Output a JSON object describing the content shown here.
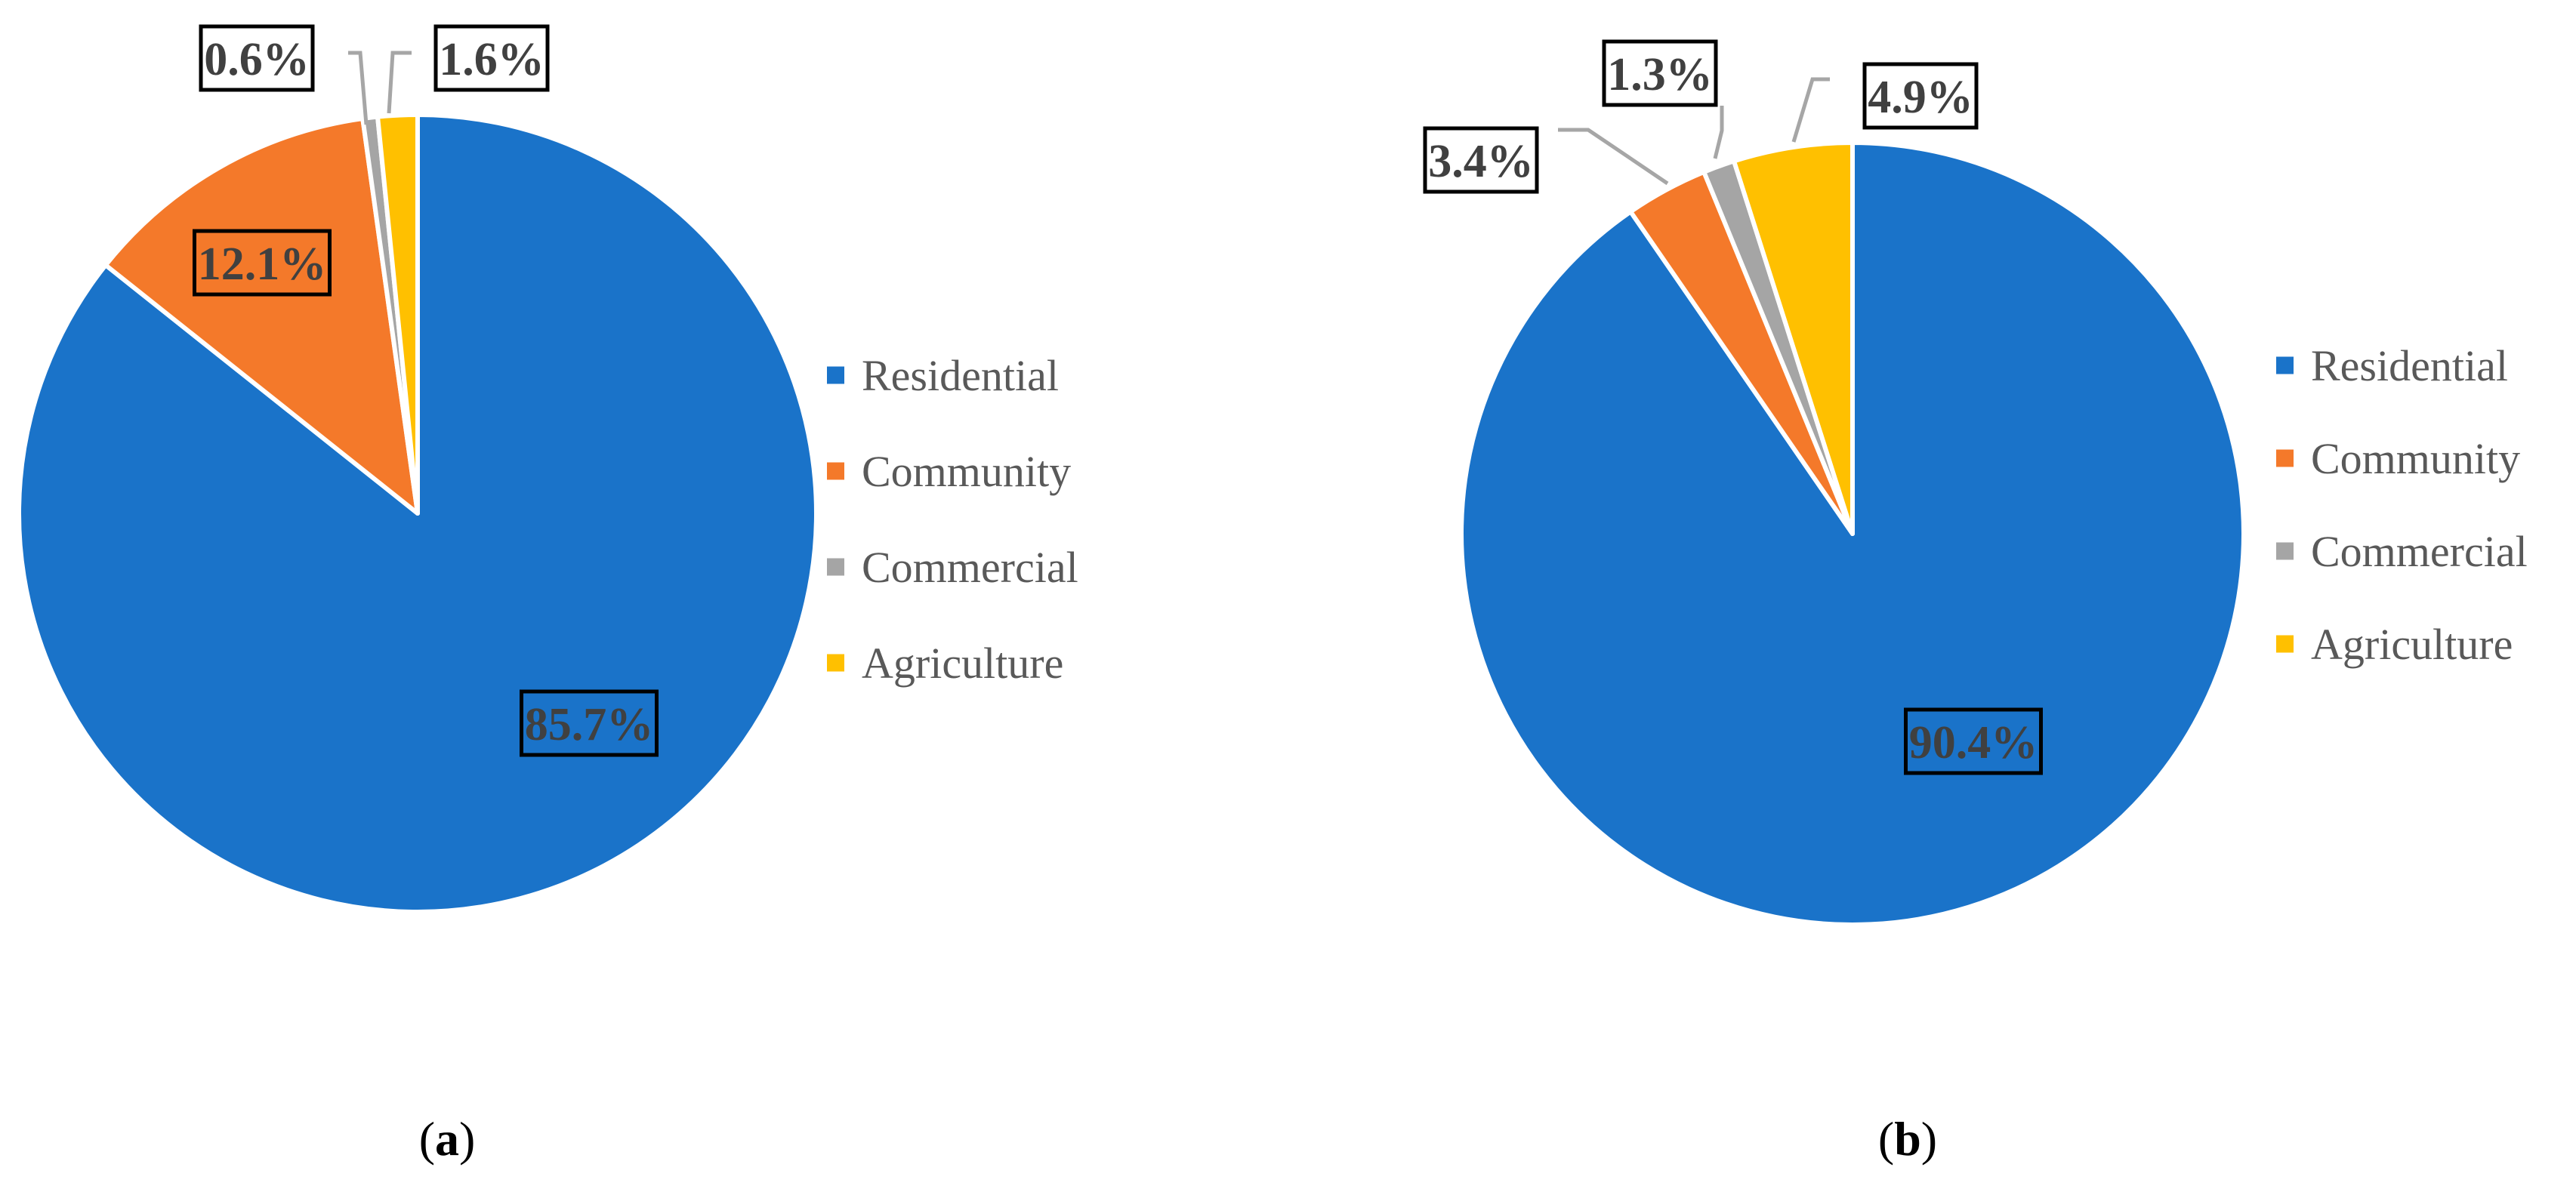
{
  "chart_data": [
    {
      "type": "pie",
      "panel_label": "a",
      "caption": {
        "open": "(",
        "letter": "a",
        "close": ")"
      },
      "categories": [
        "Residential",
        "Community",
        "Commercial",
        "Agriculture"
      ],
      "values": [
        85.7,
        12.1,
        0.6,
        1.6
      ],
      "data_labels": [
        "85.7%",
        "12.1%",
        "0.6%",
        "1.6%"
      ],
      "colors": [
        "#1a73c9",
        "#f4792a",
        "#a5a5a5",
        "#ffc000"
      ],
      "start_angle": "12 o'clock",
      "direction": "clockwise",
      "legend_position": "right"
    },
    {
      "type": "pie",
      "panel_label": "b",
      "caption": {
        "open": "(",
        "letter": "b",
        "close": ")"
      },
      "categories": [
        "Residential",
        "Community",
        "Commercial",
        "Agriculture"
      ],
      "values": [
        90.4,
        3.4,
        1.3,
        4.9
      ],
      "data_labels": [
        "90.4%",
        "3.4%",
        "1.3%",
        "4.9%"
      ],
      "colors": [
        "#1a73c9",
        "#f4792a",
        "#a5a5a5",
        "#ffc000"
      ],
      "start_angle": "12 o'clock",
      "direction": "clockwise",
      "legend_position": "right"
    }
  ]
}
